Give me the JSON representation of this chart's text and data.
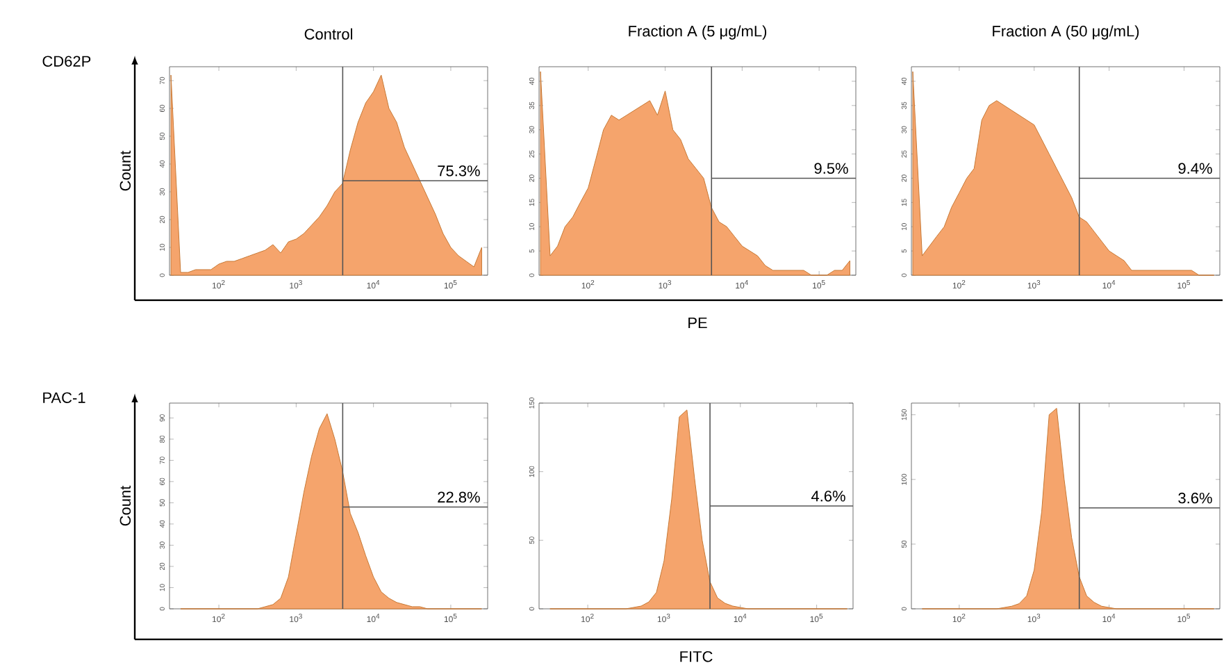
{
  "chart_data": [
    {
      "type": "area",
      "title": "Control",
      "ylabel": "Count",
      "annotations": [
        "CD62P",
        {
          "text": "75.3%",
          "y": 34
        }
      ],
      "log": "x",
      "xlim": [
        23,
        300000
      ],
      "ylim": [
        0,
        75
      ],
      "xticks": [
        {
          "value": 100,
          "label": "10$^{2}$"
        },
        {
          "value": 1000,
          "label": "10$^{3}$"
        },
        {
          "value": 10000,
          "label": "10$^{4}$"
        },
        {
          "value": 100000,
          "label": "10$^{5}$"
        }
      ],
      "yticks": [
        0,
        10,
        20,
        30,
        40,
        50,
        60,
        70
      ],
      "x": [
        24,
        32,
        40,
        50,
        63,
        79,
        100,
        126,
        158,
        200,
        251,
        316,
        398,
        501,
        631,
        794,
        1000,
        1259,
        1585,
        1995,
        2512,
        3162,
        3981,
        5012,
        6310,
        7943,
        10000,
        12589,
        15849,
        19953,
        25119,
        31623,
        39811,
        50119,
        63096,
        79433,
        100000,
        125893,
        158489,
        199526,
        251189
      ],
      "ref_lines": [
        {
          "axis": "x",
          "value": 4000,
          "color": "#555555"
        },
        {
          "axis": "y",
          "value": 34,
          "color": "#555555"
        }
      ],
      "series": [
        {
          "color": "#f5a46c",
          "values": [
            72,
            1,
            1,
            2,
            2,
            2,
            4,
            5,
            5,
            6,
            7,
            8,
            9,
            11,
            8,
            12,
            13,
            15,
            18,
            21,
            25,
            30,
            33,
            45,
            55,
            62,
            66,
            72,
            60,
            55,
            46,
            40,
            34,
            28,
            22,
            15,
            10,
            7,
            5,
            3,
            10
          ]
        }
      ]
    },
    {
      "type": "area",
      "title": "Fraction A (5 μg/mL)",
      "xlabel": "PE",
      "annotations": [
        {
          "text": "9.5%",
          "y": 20
        }
      ],
      "log": "x",
      "xlim": [
        23,
        300000
      ],
      "ylim": [
        0,
        43
      ],
      "xticks": [
        {
          "value": 100,
          "label": "10$^{2}$"
        },
        {
          "value": 1000,
          "label": "10$^{3}$"
        },
        {
          "value": 10000,
          "label": "10$^{4}$"
        },
        {
          "value": 100000,
          "label": "10$^{5}$"
        }
      ],
      "yticks": [
        0,
        5,
        10,
        15,
        20,
        25,
        30,
        35,
        40
      ],
      "x": [
        24,
        32,
        40,
        50,
        63,
        79,
        100,
        126,
        158,
        200,
        251,
        316,
        398,
        501,
        631,
        794,
        1000,
        1259,
        1585,
        1995,
        2512,
        3162,
        3981,
        5012,
        6310,
        7943,
        10000,
        12589,
        15849,
        19953,
        25119,
        31623,
        39811,
        50119,
        63096,
        79433,
        100000,
        125893,
        158489,
        199526,
        251189
      ],
      "ref_lines": [
        {
          "axis": "x",
          "value": 4000,
          "color": "#555555"
        },
        {
          "axis": "y",
          "value": 20,
          "color": "#555555"
        }
      ],
      "series": [
        {
          "color": "#f5a46c",
          "values": [
            42,
            4,
            6,
            10,
            12,
            15,
            18,
            24,
            30,
            33,
            32,
            33,
            34,
            35,
            36,
            33,
            38,
            30,
            28,
            24,
            22,
            20,
            14,
            11,
            10,
            8,
            6,
            5,
            4,
            2,
            1,
            1,
            1,
            1,
            1,
            0,
            0,
            0,
            1,
            1,
            3
          ]
        }
      ]
    },
    {
      "type": "area",
      "title": "Fraction A (50 μg/mL)",
      "annotations": [
        {
          "text": "9.4%",
          "y": 20
        }
      ],
      "log": "x",
      "xlim": [
        23,
        300000
      ],
      "ylim": [
        0,
        43
      ],
      "xticks": [
        {
          "value": 100,
          "label": "10$^{2}$"
        },
        {
          "value": 1000,
          "label": "10$^{3}$"
        },
        {
          "value": 10000,
          "label": "10$^{4}$"
        },
        {
          "value": 100000,
          "label": "10$^{5}$"
        }
      ],
      "yticks": [
        0,
        5,
        10,
        15,
        20,
        25,
        30,
        35,
        40
      ],
      "x": [
        24,
        32,
        40,
        50,
        63,
        79,
        100,
        126,
        158,
        200,
        251,
        316,
        398,
        501,
        631,
        794,
        1000,
        1259,
        1585,
        1995,
        2512,
        3162,
        3981,
        5012,
        6310,
        7943,
        10000,
        12589,
        15849,
        19953,
        25119,
        31623,
        39811,
        50119,
        63096,
        79433,
        100000,
        125893,
        158489,
        199526,
        251189
      ],
      "ref_lines": [
        {
          "axis": "x",
          "value": 4000,
          "color": "#555555"
        },
        {
          "axis": "y",
          "value": 20,
          "color": "#555555"
        }
      ],
      "series": [
        {
          "color": "#f5a46c",
          "values": [
            42,
            4,
            6,
            8,
            10,
            14,
            17,
            20,
            22,
            32,
            35,
            36,
            35,
            34,
            33,
            32,
            31,
            28,
            25,
            22,
            19,
            16,
            12,
            11,
            9,
            7,
            5,
            4,
            3,
            1,
            1,
            1,
            1,
            1,
            1,
            1,
            1,
            1,
            0,
            0,
            0
          ]
        }
      ]
    },
    {
      "type": "area",
      "ylabel": "Count",
      "annotations": [
        "PAC-1",
        {
          "text": "22.8%",
          "y": 48
        }
      ],
      "log": "x",
      "xlim": [
        23,
        300000
      ],
      "ylim": [
        0,
        97
      ],
      "xticks": [
        {
          "value": 100,
          "label": "10$^{2}$"
        },
        {
          "value": 1000,
          "label": "10$^{3}$"
        },
        {
          "value": 10000,
          "label": "10$^{4}$"
        },
        {
          "value": 100000,
          "label": "10$^{5}$"
        }
      ],
      "yticks": [
        0,
        10,
        20,
        30,
        40,
        50,
        60,
        70,
        80,
        90
      ],
      "x": [
        32,
        40,
        50,
        63,
        79,
        100,
        126,
        158,
        200,
        251,
        316,
        398,
        501,
        631,
        794,
        1000,
        1259,
        1585,
        1995,
        2512,
        3162,
        3981,
        5012,
        6310,
        7943,
        10000,
        12589,
        15849,
        19953,
        25119,
        31623,
        39811,
        50119,
        63096,
        79433,
        100000,
        125893,
        158489,
        199526,
        251189
      ],
      "ref_lines": [
        {
          "axis": "x",
          "value": 4000,
          "color": "#555555"
        },
        {
          "axis": "y",
          "value": 48,
          "color": "#555555"
        }
      ],
      "series": [
        {
          "color": "#f5a46c",
          "values": [
            0,
            0,
            0,
            0,
            0,
            0,
            0,
            0,
            0,
            0,
            0,
            1,
            2,
            5,
            15,
            35,
            55,
            72,
            85,
            92,
            80,
            65,
            45,
            36,
            25,
            15,
            8,
            5,
            3,
            2,
            1,
            1,
            0,
            0,
            0,
            0,
            0,
            0,
            0,
            0
          ]
        }
      ]
    },
    {
      "type": "area",
      "xlabel": "FITC",
      "annotations": [
        {
          "text": "4.6%",
          "y": 75
        }
      ],
      "log": "x",
      "xlim": [
        23,
        300000
      ],
      "ylim": [
        0,
        150
      ],
      "xticks": [
        {
          "value": 100,
          "label": "10$^{2}$"
        },
        {
          "value": 1000,
          "label": "10$^{3}$"
        },
        {
          "value": 10000,
          "label": "10$^{4}$"
        },
        {
          "value": 100000,
          "label": "10$^{5}$"
        }
      ],
      "yticks": [
        0,
        50,
        100,
        150
      ],
      "x": [
        32,
        40,
        50,
        63,
        79,
        100,
        126,
        158,
        200,
        251,
        316,
        398,
        501,
        631,
        794,
        1000,
        1259,
        1585,
        1995,
        2512,
        3162,
        3981,
        5012,
        6310,
        7943,
        10000,
        12589,
        15849,
        19953,
        25119,
        31623,
        39811,
        50119,
        63096,
        79433,
        100000,
        125893,
        158489,
        199526,
        251189
      ],
      "ref_lines": [
        {
          "axis": "x",
          "value": 4000,
          "color": "#555555"
        },
        {
          "axis": "y",
          "value": 75,
          "color": "#555555"
        }
      ],
      "series": [
        {
          "color": "#f5a46c",
          "values": [
            0,
            0,
            0,
            0,
            0,
            0,
            0,
            0,
            0,
            0,
            0,
            1,
            2,
            5,
            12,
            35,
            80,
            140,
            145,
            95,
            50,
            20,
            8,
            4,
            2,
            1,
            0,
            0,
            0,
            0,
            0,
            0,
            0,
            0,
            0,
            0,
            0,
            0,
            0,
            0
          ]
        }
      ]
    },
    {
      "type": "area",
      "annotations": [
        {
          "text": "3.6%",
          "y": 78
        }
      ],
      "log": "x",
      "xlim": [
        23,
        300000
      ],
      "ylim": [
        0,
        159
      ],
      "xticks": [
        {
          "value": 100,
          "label": "10$^{2}$"
        },
        {
          "value": 1000,
          "label": "10$^{3}$"
        },
        {
          "value": 10000,
          "label": "10$^{4}$"
        },
        {
          "value": 100000,
          "label": "10$^{5}$"
        }
      ],
      "yticks": [
        0,
        50,
        100,
        150
      ],
      "x": [
        32,
        40,
        50,
        63,
        79,
        100,
        126,
        158,
        200,
        251,
        316,
        398,
        501,
        631,
        794,
        1000,
        1259,
        1585,
        1995,
        2512,
        3162,
        3981,
        5012,
        6310,
        7943,
        10000,
        12589,
        15849,
        19953,
        25119,
        31623,
        39811,
        50119,
        63096,
        79433,
        100000,
        125893,
        158489,
        199526,
        251189
      ],
      "ref_lines": [
        {
          "axis": "x",
          "value": 4000,
          "color": "#555555"
        },
        {
          "axis": "y",
          "value": 78,
          "color": "#555555"
        }
      ],
      "series": [
        {
          "color": "#f5a46c",
          "values": [
            0,
            0,
            0,
            0,
            0,
            0,
            0,
            0,
            0,
            0,
            0,
            1,
            2,
            4,
            10,
            30,
            75,
            150,
            155,
            100,
            55,
            25,
            10,
            5,
            2,
            1,
            0,
            0,
            0,
            0,
            0,
            0,
            0,
            0,
            0,
            0,
            0,
            0,
            0,
            0
          ]
        }
      ]
    }
  ]
}
